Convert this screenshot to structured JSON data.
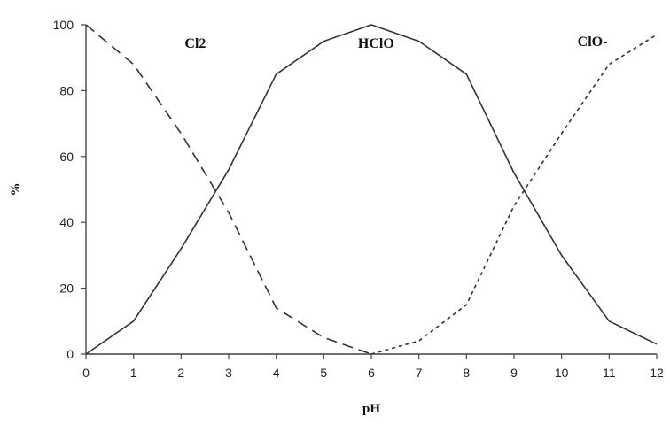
{
  "chart_data": {
    "type": "line",
    "xlabel": "pH",
    "ylabel": "%",
    "xlim": [
      0,
      12
    ],
    "ylim": [
      0,
      100
    ],
    "x_ticks": [
      0,
      1,
      2,
      3,
      4,
      5,
      6,
      7,
      8,
      9,
      10,
      11,
      12
    ],
    "y_ticks": [
      0,
      20,
      40,
      60,
      80,
      100
    ],
    "grid": false,
    "legend": "none",
    "x": [
      0,
      1,
      2,
      3,
      4,
      5,
      6,
      7,
      8,
      9,
      10,
      11,
      12
    ],
    "series": [
      {
        "name": "Cl2",
        "style": "long-dash",
        "color": "#333333",
        "values": [
          100,
          88,
          67,
          43,
          14,
          5,
          0,
          null,
          null,
          null,
          null,
          null,
          null
        ],
        "label_pos": [
          2.3,
          93
        ]
      },
      {
        "name": "HClO",
        "style": "solid",
        "color": "#333333",
        "values": [
          0,
          10,
          32,
          56,
          85,
          95,
          100,
          95,
          85,
          55,
          30,
          10,
          3
        ],
        "label_pos": [
          6.1,
          93
        ]
      },
      {
        "name": "ClO-",
        "style": "short-dash",
        "color": "#333333",
        "values": [
          null,
          null,
          null,
          null,
          null,
          null,
          0,
          4,
          15,
          45,
          67,
          88,
          97
        ],
        "label_pos": [
          10.65,
          93.5
        ]
      }
    ]
  }
}
